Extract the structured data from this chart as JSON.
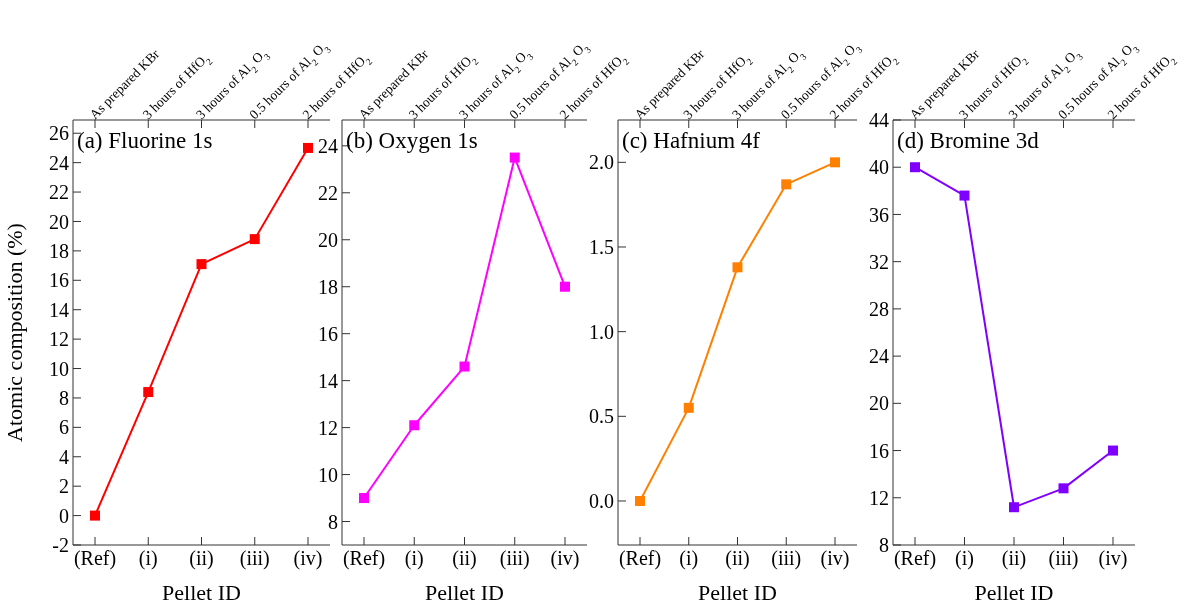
{
  "chart_data": [
    {
      "type": "line",
      "title": "(a) Fluorine 1s",
      "xlabel": "Pellet ID",
      "ylabel": "Atomic composition (%)",
      "categories": [
        "(Ref)",
        "(i)",
        "(ii)",
        "(iii)",
        "(iv)"
      ],
      "annotations": [
        "As prepared KBr",
        "3 hours of HfO$_{2}$",
        "3 hours of Al$_{2}$O$_{3}$",
        "0.5 hours of Al$_{2}$O$_{3}$",
        "2 hours of HfO$_{2}$"
      ],
      "series": [
        {
          "color": "#ff0000",
          "values": [
            0,
            8.4,
            17.1,
            18.8,
            25
          ]
        }
      ],
      "ylim": [
        -2,
        26.9
      ],
      "yticks": [
        -2,
        0,
        2,
        4,
        6,
        8,
        10,
        12,
        14,
        16,
        18,
        20,
        22,
        24,
        26
      ],
      "marker": "square",
      "line_style": "solid",
      "grid": false,
      "legend": false
    },
    {
      "type": "line",
      "title": "(b) Oxygen 1s",
      "xlabel": "Pellet ID",
      "categories": [
        "(Ref)",
        "(i)",
        "(ii)",
        "(iii)",
        "(iv)"
      ],
      "annotations": [
        "As prepared KBr",
        "3 hours of HfO$_{2}$",
        "3 hours of Al$_{2}$O$_{3}$",
        "0.5 hours of Al$_{2}$O$_{3}$",
        "2 hours of HfO$_{2}$"
      ],
      "series": [
        {
          "color": "#ff00ff",
          "values": [
            9.0,
            12.1,
            14.6,
            23.5,
            18.0
          ]
        }
      ],
      "ylim": [
        7,
        25.1
      ],
      "yticks": [
        8,
        10,
        12,
        14,
        16,
        18,
        20,
        22,
        24
      ],
      "marker": "square",
      "line_style": "solid",
      "grid": false,
      "legend": false
    },
    {
      "type": "line",
      "title": "(c) Hafnium 4f",
      "xlabel": "Pellet ID",
      "categories": [
        "(Ref)",
        "(i)",
        "(ii)",
        "(iii)",
        "(iv)"
      ],
      "annotations": [
        "As prepared KBr",
        "3 hours of HfO$_{2}$",
        "3 hours of Al$_{2}$O$_{3}$",
        "0.5 hours of Al$_{2}$O$_{3}$",
        "2 hours of HfO$_{2}$"
      ],
      "series": [
        {
          "color": "#ff8000",
          "values": [
            0,
            0.55,
            1.38,
            1.87,
            2.0
          ]
        }
      ],
      "ylim": [
        -0.26,
        2.25
      ],
      "yticks": [
        {
          "value": 0,
          "label": "0.0"
        },
        0.5,
        {
          "value": 1,
          "label": "1.0"
        },
        1.5,
        {
          "value": 2,
          "label": "2.0"
        }
      ],
      "marker": "square",
      "line_style": "solid",
      "grid": false,
      "legend": false
    },
    {
      "type": "line",
      "title": "(d) Bromine 3d",
      "xlabel": "Pellet ID",
      "categories": [
        "(Ref)",
        "(i)",
        "(ii)",
        "(iii)",
        "(iv)"
      ],
      "annotations": [
        "As prepared KBr",
        "3 hours of HfO$_{2}$",
        "3 hours of Al$_{2}$O$_{3}$",
        "0.5 hours of Al$_{2}$O$_{3}$",
        "2 hours of HfO$_{2}$"
      ],
      "series": [
        {
          "color": "#8000ff",
          "values": [
            40,
            37.6,
            11.2,
            12.8,
            16
          ]
        }
      ],
      "ylim": [
        8,
        44
      ],
      "yticks": [
        8,
        12,
        16,
        20,
        24,
        28,
        32,
        36,
        40,
        44
      ],
      "marker": "square",
      "line_style": "solid",
      "grid": false,
      "legend": false
    }
  ]
}
